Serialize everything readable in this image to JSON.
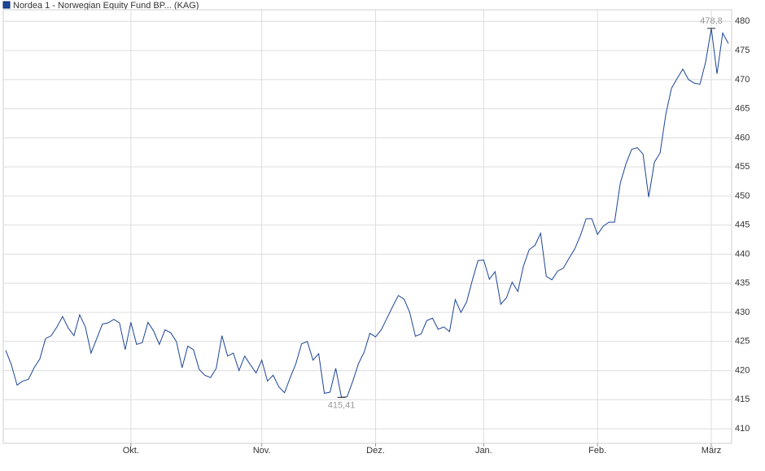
{
  "chart_data": {
    "type": "line",
    "series": [
      {
        "name": "Nordea 1 - Norwegian Equity Fund BP... (KAG)",
        "color": "#1c4596",
        "values": [
          423.5,
          421,
          417.5,
          418.2,
          418.5,
          420.5,
          422,
          425.5,
          426,
          427.5,
          429.3,
          427.3,
          426,
          429.6,
          427.5,
          423,
          425.5,
          428,
          428.2,
          428.8,
          428.2,
          423.6,
          428.3,
          424.5,
          424.8,
          428.3,
          426.8,
          424.5,
          427,
          426.5,
          425,
          420.5,
          424.2,
          423.6,
          420.2,
          419.2,
          418.8,
          420.4,
          426,
          422.5,
          423,
          420,
          422.5,
          421,
          419.6,
          421.8,
          418.2,
          419.2,
          417.2,
          416.2,
          418.8,
          421.2,
          424.6,
          425,
          421.8,
          422.9,
          416.1,
          416.3,
          420.4,
          415.41,
          415.5,
          418.2,
          421.2,
          423.2,
          426.4,
          425.8,
          427,
          429,
          431,
          432.9,
          432.3,
          430,
          425.9,
          426.3,
          428.6,
          429,
          427.1,
          427.5,
          426.7,
          432.2,
          430,
          431.8,
          435.5,
          438.9,
          439,
          435.7,
          437,
          431.4,
          432.5,
          435.2,
          433.6,
          438,
          440.8,
          441.5,
          443.6,
          436.2,
          435.6,
          437.1,
          437.6,
          439.3,
          440.9,
          443.2,
          446.1,
          446.1,
          443.4,
          444.8,
          445.5,
          445.5,
          452.2,
          455.5,
          458,
          458.3,
          457.2,
          449.8,
          455.8,
          457.4,
          464,
          468.5,
          470.2,
          471.8,
          470,
          469.4,
          469.2,
          473,
          478.8,
          471,
          478,
          476.2
        ]
      }
    ],
    "categories": [
      null,
      null,
      null,
      null,
      null,
      null,
      null,
      null,
      null,
      null,
      null,
      null,
      null,
      null,
      null,
      null,
      null,
      null,
      null,
      null,
      null,
      null,
      "Okt.",
      null,
      null,
      null,
      null,
      null,
      null,
      null,
      null,
      null,
      null,
      null,
      null,
      null,
      null,
      null,
      null,
      null,
      null,
      null,
      null,
      null,
      null,
      "Nov.",
      null,
      null,
      null,
      null,
      null,
      null,
      null,
      null,
      null,
      null,
      null,
      null,
      null,
      null,
      null,
      null,
      null,
      null,
      null,
      "Dez.",
      null,
      null,
      null,
      null,
      null,
      null,
      null,
      null,
      null,
      null,
      null,
      null,
      null,
      null,
      null,
      null,
      null,
      null,
      "Jan.",
      null,
      null,
      null,
      null,
      null,
      null,
      null,
      null,
      null,
      null,
      null,
      null,
      null,
      null,
      null,
      null,
      null,
      null,
      null,
      "Feb.",
      null,
      null,
      null,
      null,
      null,
      null,
      null,
      null,
      null,
      null,
      null,
      null,
      null,
      null,
      null,
      null,
      null,
      null,
      null,
      "März",
      null,
      null,
      null
    ],
    "annotations": [
      {
        "label": "478,8",
        "value": 478.8
      },
      {
        "label": "415,41",
        "value": 415.41
      }
    ],
    "ylim": [
      407.5,
      482
    ],
    "yticks": [
      410,
      415,
      420,
      425,
      430,
      435,
      440,
      445,
      450,
      455,
      460,
      465,
      470,
      475,
      480
    ],
    "grid": true
  }
}
